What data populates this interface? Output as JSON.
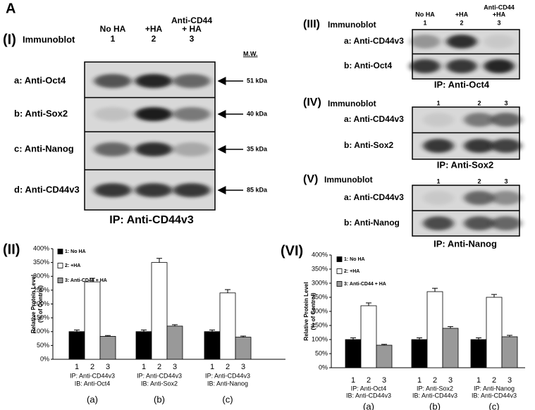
{
  "figure_label": "A",
  "blots": [
    {
      "panel": "(I)",
      "title": "Immunoblot",
      "mw_header": "M.W.",
      "lanes": [
        {
          "name": [
            "No HA"
          ],
          "number": "1"
        },
        {
          "name": [
            "+HA"
          ],
          "number": "2"
        },
        {
          "name": [
            "Anti-CD44",
            "+ HA"
          ],
          "number": "3"
        }
      ],
      "rows": [
        {
          "label": "a: Anti-Oct4",
          "mw": "51 kDa"
        },
        {
          "label": "b: Anti-Sox2",
          "mw": "40 kDa"
        },
        {
          "label": "c: Anti-Nanog",
          "mw": "35 kDa"
        },
        {
          "label": "d: Anti-CD44v3",
          "mw": "85 kDa"
        }
      ],
      "ip": "IP: Anti-CD44v3"
    },
    {
      "panel": "(III)",
      "title": "Immunoblot",
      "lanes": [
        {
          "name": [
            "No HA"
          ],
          "number": "1"
        },
        {
          "name": [
            "+HA"
          ],
          "number": "2"
        },
        {
          "name": [
            "Anti-CD44",
            "+HA"
          ],
          "number": "3"
        }
      ],
      "rows": [
        {
          "label": "a: Anti-CD44v3"
        },
        {
          "label": "b: Anti-Oct4"
        }
      ],
      "ip": "IP: Anti-Oct4"
    },
    {
      "panel": "(IV)",
      "title": "Immunoblot",
      "lanes": [
        {
          "number": "1"
        },
        {
          "number": "2"
        },
        {
          "number": "3"
        }
      ],
      "rows": [
        {
          "label": "a: Anti-CD44v3"
        },
        {
          "label": "b: Anti-Sox2"
        }
      ],
      "ip": "IP: Anti-Sox2"
    },
    {
      "panel": "(V)",
      "title": "Immunoblot",
      "lanes": [
        {
          "number": "1"
        },
        {
          "number": "2"
        },
        {
          "number": "3"
        }
      ],
      "rows": [
        {
          "label": "a: Anti-CD44v3"
        },
        {
          "label": "b: Anti-Nanog"
        }
      ],
      "ip": "IP: Anti-Nanog"
    }
  ],
  "chart_data": [
    {
      "type": "bar",
      "panel": "(II)",
      "ylabel": [
        "Relative Protein Level",
        "(% of Control)"
      ],
      "categories": [
        [
          "IP: Anti-CD44v3",
          "IB: Anti-Oct4"
        ],
        [
          "IP: Anti-CD44v3",
          "IB: Anti-Sox2"
        ],
        [
          "IP: Anti-CD44v3",
          "IB: Anti-Nanog"
        ]
      ],
      "group_labels": [
        "(a)",
        "(b)",
        "(c)"
      ],
      "bar_labels": [
        "1",
        "2",
        "3"
      ],
      "series": [
        {
          "name": "1: No HA",
          "color": "#000000",
          "values": [
            100,
            100,
            100
          ],
          "errors": [
            6,
            6,
            6
          ]
        },
        {
          "name": "2: +HA",
          "color": "#ffffff",
          "values": [
            280,
            350,
            240
          ],
          "errors": [
            13,
            15,
            12
          ]
        },
        {
          "name": "3: Anti-CD44 + HA",
          "color": "#999999",
          "values": [
            83,
            120,
            80
          ],
          "errors": [
            3,
            5,
            4
          ]
        }
      ],
      "ylim": [
        0,
        400
      ],
      "yticks": [
        {
          "value": 0,
          "label": "0%"
        },
        {
          "value": 50,
          "label": "50%"
        },
        {
          "value": 100,
          "label": "100%"
        },
        {
          "value": 150,
          "label": "150%"
        },
        {
          "value": 200,
          "label": "200%"
        },
        {
          "value": 250,
          "label": "250%"
        },
        {
          "value": 300,
          "label": "300%"
        },
        {
          "value": 350,
          "label": "350%"
        },
        {
          "value": 400,
          "label": "400%"
        }
      ],
      "grid": false
    },
    {
      "type": "bar",
      "panel": "(VI)",
      "ylabel": [
        "Relative Protein Level",
        "(% of Control)"
      ],
      "categories": [
        [
          "IP: Anti-Oct4",
          "IB: Anti-CD44v3"
        ],
        [
          "IP: Anti-Sox2",
          "IB: Anti-CD44v3"
        ],
        [
          "IP: Anti-Nanog",
          "IB: Anti-CD44v3"
        ]
      ],
      "group_labels": [
        "(a)",
        "(b)",
        "(c)"
      ],
      "bar_labels": [
        "1",
        "2",
        "3"
      ],
      "series": [
        {
          "name": "1: No HA",
          "color": "#000000",
          "values": [
            100,
            100,
            100
          ],
          "errors": [
            6,
            6,
            6
          ]
        },
        {
          "name": "2: +HA",
          "color": "#ffffff",
          "values": [
            220,
            270,
            250
          ],
          "errors": [
            10,
            12,
            10
          ]
        },
        {
          "name": "3: Anti-CD44 + HA",
          "color": "#999999",
          "values": [
            80,
            140,
            110
          ],
          "errors": [
            3,
            6,
            5
          ]
        }
      ],
      "ylim": [
        0,
        400
      ],
      "yticks": [
        {
          "value": 0,
          "label": "0%"
        },
        {
          "value": 50,
          "label": "50%"
        },
        {
          "value": 100,
          "label": "100%"
        },
        {
          "value": 150,
          "label": "150%"
        },
        {
          "value": 200,
          "label": "200%"
        },
        {
          "value": 250,
          "label": "250%"
        },
        {
          "value": 300,
          "label": "300%"
        },
        {
          "value": 350,
          "label": "350%"
        },
        {
          "value": 400,
          "label": "400%"
        }
      ],
      "grid": false
    }
  ]
}
